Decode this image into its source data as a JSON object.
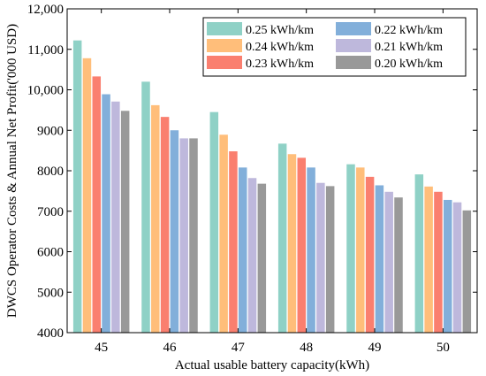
{
  "chart_data": {
    "type": "bar",
    "xlabel": "Actual usable battery capacity(kWh)",
    "ylabel": "DWCS Operator Costs & Annual Net Profit('000 USD)",
    "categories": [
      "45",
      "46",
      "47",
      "48",
      "49",
      "50"
    ],
    "ylim": [
      4000,
      12000
    ],
    "yticks": [
      4000,
      5000,
      6000,
      7000,
      8000,
      9000,
      10000,
      11000,
      12000
    ],
    "ytick_labels": [
      "4000",
      "5000",
      "6000",
      "7000",
      "8000",
      "9000",
      "10,000",
      "11,000",
      "12,000"
    ],
    "grid": false,
    "legend_position": "top-right",
    "series": [
      {
        "name": "0.25 kWh/km",
        "color": "#8fd1c6",
        "values": [
          11220,
          10200,
          9450,
          8670,
          8160,
          7910
        ]
      },
      {
        "name": "0.24 kWh/km",
        "color": "#ffbe7a",
        "values": [
          10780,
          9620,
          8890,
          8410,
          8080,
          7610
        ]
      },
      {
        "name": "0.23 kWh/km",
        "color": "#fa7f6f",
        "values": [
          10330,
          9330,
          8480,
          8320,
          7850,
          7480
        ]
      },
      {
        "name": "0.22 kWh/km",
        "color": "#82afda",
        "values": [
          9890,
          9000,
          8080,
          8080,
          7640,
          7280
        ]
      },
      {
        "name": "0.21 kWh/km",
        "color": "#beb8dc",
        "values": [
          9710,
          8800,
          7820,
          7700,
          7480,
          7220
        ]
      },
      {
        "name": "0.20 kWh/km",
        "color": "#999999",
        "values": [
          9480,
          8800,
          7680,
          7620,
          7340,
          7020
        ]
      }
    ]
  }
}
